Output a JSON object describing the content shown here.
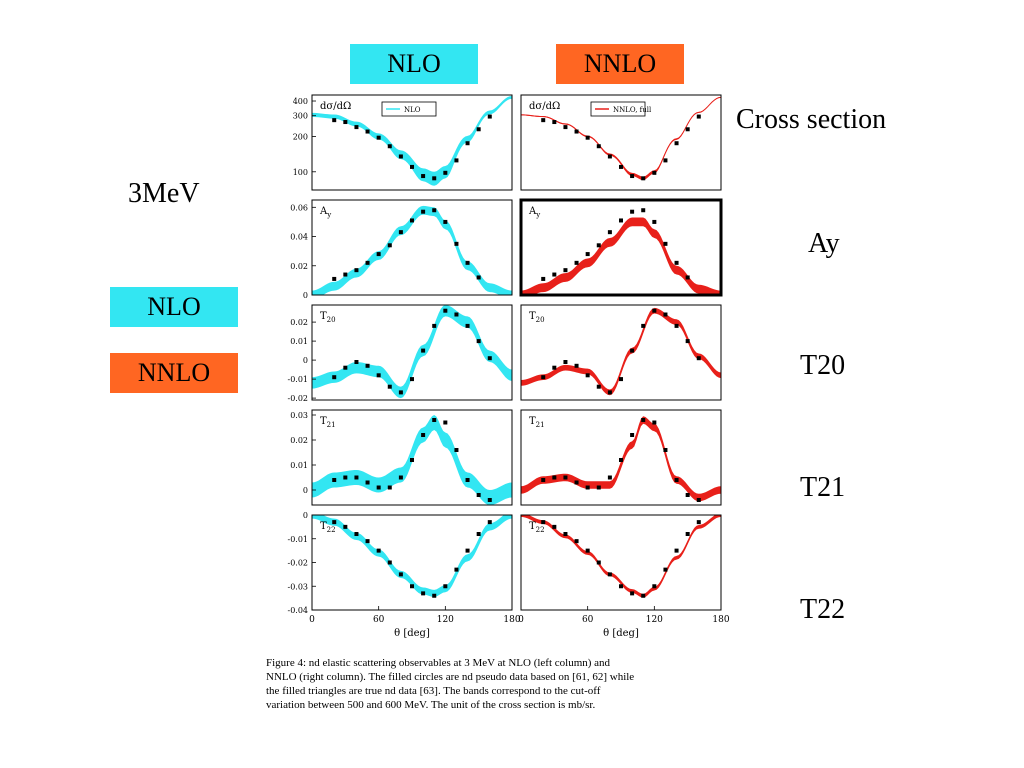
{
  "header": {
    "nlo_label": "NLO",
    "nnlo_label": "NNLO"
  },
  "energy_label": "3MeV",
  "legend_boxes": {
    "nlo_label": "NLO",
    "nnlo_label": "NNLO"
  },
  "row_labels": [
    "Cross section",
    "Ay",
    "T20",
    "T21",
    "T22"
  ],
  "colors": {
    "nlo": "#33e6f2",
    "nnlo": "#ff6622",
    "nnlo_band": "#e8201a",
    "data": "#000000"
  },
  "caption": [
    "Figure 4:   nd elastic scattering observables at 3 MeV at NLO (left column) and",
    "NNLO (right column). The filled circles are nd pseudo data based on [61, 62] while",
    "the filled triangles are true nd data [63].  The bands correspond to the cut-off",
    "variation between 500 and 600 MeV. The unit of the cross section is mb/sr."
  ],
  "chart_data": [
    {
      "type": "line",
      "panel": "dσ/dΩ NLO",
      "title": "dσ/dΩ",
      "legend": "NLO",
      "scale": "log",
      "xlabel": "",
      "ylabel": "",
      "xlim": [
        0,
        180
      ],
      "ylim": [
        70,
        450
      ],
      "yticks": [
        100,
        200,
        300,
        400
      ],
      "xticks": [],
      "x": [
        0,
        20,
        40,
        60,
        80,
        100,
        110,
        120,
        140,
        160,
        180
      ],
      "series": [
        {
          "name": "NLO",
          "values": [
            305,
            295,
            255,
            200,
            140,
            95,
            88,
            100,
            190,
            320,
            430
          ],
          "band": 12
        }
      ],
      "points": {
        "x": [
          20,
          30,
          40,
          50,
          60,
          70,
          80,
          90,
          100,
          110,
          120,
          130,
          140,
          150,
          160
        ],
        "values": [
          275,
          265,
          240,
          220,
          195,
          165,
          135,
          110,
          92,
          88,
          98,
          125,
          175,
          230,
          295
        ]
      }
    },
    {
      "type": "line",
      "panel": "dσ/dΩ NNLO",
      "title": "dσ/dΩ",
      "legend": "NNLO, full",
      "scale": "log",
      "xlabel": "",
      "ylabel": "",
      "xlim": [
        0,
        180
      ],
      "ylim": [
        70,
        450
      ],
      "yticks": [],
      "xticks": [],
      "x": [
        0,
        20,
        40,
        60,
        80,
        100,
        110,
        120,
        140,
        160,
        180
      ],
      "series": [
        {
          "name": "NNLO, full",
          "values": [
            305,
            295,
            255,
            200,
            140,
            95,
            88,
            100,
            190,
            320,
            430
          ],
          "band": 3
        }
      ],
      "points": {
        "x": [
          20,
          30,
          40,
          50,
          60,
          70,
          80,
          90,
          100,
          110,
          120,
          130,
          140,
          150,
          160
        ],
        "values": [
          275,
          265,
          240,
          220,
          195,
          165,
          135,
          110,
          92,
          88,
          98,
          125,
          175,
          230,
          295
        ]
      }
    },
    {
      "type": "line",
      "panel": "Ay NLO",
      "title": "Ay",
      "scale": "linear",
      "xlabel": "",
      "ylabel": "",
      "xlim": [
        0,
        180
      ],
      "ylim": [
        0,
        0.065
      ],
      "yticks": [
        0,
        0.02,
        0.04,
        0.06
      ],
      "xticks": [],
      "x": [
        0,
        20,
        40,
        60,
        80,
        100,
        110,
        120,
        140,
        160,
        180
      ],
      "series": [
        {
          "name": "NLO",
          "values": [
            0,
            0.006,
            0.015,
            0.027,
            0.044,
            0.058,
            0.057,
            0.048,
            0.02,
            0.005,
            0
          ],
          "band": 0.003
        }
      ],
      "points": {
        "x": [
          20,
          30,
          40,
          50,
          60,
          70,
          80,
          90,
          100,
          110,
          120,
          130,
          140,
          150
        ],
        "values": [
          0.011,
          0.014,
          0.017,
          0.022,
          0.028,
          0.034,
          0.043,
          0.051,
          0.057,
          0.058,
          0.05,
          0.035,
          0.022,
          0.012
        ]
      }
    },
    {
      "type": "line",
      "panel": "Ay NNLO",
      "title": "Ay",
      "scale": "linear",
      "highlight": true,
      "xlabel": "",
      "ylabel": "",
      "xlim": [
        0,
        180
      ],
      "ylim": [
        0,
        0.065
      ],
      "yticks": [],
      "xticks": [],
      "x": [
        0,
        20,
        40,
        60,
        80,
        100,
        110,
        120,
        140,
        160,
        180
      ],
      "series": [
        {
          "name": "NNLO",
          "values": [
            0,
            0.005,
            0.012,
            0.022,
            0.036,
            0.05,
            0.05,
            0.042,
            0.017,
            0.004,
            0
          ],
          "band": 0.003
        }
      ],
      "points": {
        "x": [
          20,
          30,
          40,
          50,
          60,
          70,
          80,
          90,
          100,
          110,
          120,
          130,
          140,
          150
        ],
        "values": [
          0.011,
          0.014,
          0.017,
          0.022,
          0.028,
          0.034,
          0.043,
          0.051,
          0.057,
          0.058,
          0.05,
          0.035,
          0.022,
          0.012
        ]
      }
    },
    {
      "type": "line",
      "panel": "T20 NLO",
      "title": "T20",
      "scale": "linear",
      "xlabel": "",
      "ylabel": "",
      "xlim": [
        0,
        180
      ],
      "ylim": [
        -0.021,
        0.029
      ],
      "yticks": [
        -0.02,
        -0.01,
        0,
        0.01,
        0.02
      ],
      "xticks": [],
      "x": [
        0,
        20,
        40,
        60,
        80,
        100,
        120,
        140,
        160,
        180
      ],
      "series": [
        {
          "name": "NLO",
          "values": [
            -0.012,
            -0.009,
            -0.004,
            -0.006,
            -0.017,
            0.005,
            0.026,
            0.02,
            0.002,
            -0.008
          ],
          "band": 0.003
        }
      ],
      "points": {
        "x": [
          20,
          30,
          40,
          50,
          60,
          70,
          80,
          90,
          100,
          110,
          120,
          130,
          140,
          150,
          160
        ],
        "values": [
          -0.009,
          -0.004,
          -0.001,
          -0.003,
          -0.008,
          -0.014,
          -0.017,
          -0.01,
          0.005,
          0.018,
          0.026,
          0.024,
          0.018,
          0.01,
          0.001
        ]
      }
    },
    {
      "type": "line",
      "panel": "T20 NNLO",
      "title": "T20",
      "scale": "linear",
      "xlabel": "",
      "ylabel": "",
      "xlim": [
        0,
        180
      ],
      "ylim": [
        -0.021,
        0.029
      ],
      "yticks": [],
      "xticks": [],
      "x": [
        0,
        20,
        40,
        60,
        80,
        100,
        120,
        140,
        160,
        180
      ],
      "series": [
        {
          "name": "NNLO",
          "values": [
            -0.012,
            -0.009,
            -0.004,
            -0.006,
            -0.017,
            0.005,
            0.026,
            0.02,
            0.002,
            -0.008
          ],
          "band": 0.0015
        }
      ],
      "points": {
        "x": [
          20,
          30,
          40,
          50,
          60,
          70,
          80,
          90,
          100,
          110,
          120,
          130,
          140,
          150,
          160
        ],
        "values": [
          -0.009,
          -0.004,
          -0.001,
          -0.003,
          -0.008,
          -0.014,
          -0.017,
          -0.01,
          0.005,
          0.018,
          0.026,
          0.024,
          0.018,
          0.01,
          0.001
        ]
      }
    },
    {
      "type": "line",
      "panel": "T21 NLO",
      "title": "T21",
      "scale": "linear",
      "xlabel": "",
      "ylabel": "",
      "xlim": [
        0,
        180
      ],
      "ylim": [
        -0.006,
        0.032
      ],
      "yticks": [
        0,
        0.01,
        0.02,
        0.03
      ],
      "xticks": [],
      "x": [
        0,
        20,
        40,
        60,
        80,
        100,
        110,
        120,
        140,
        160,
        180
      ],
      "series": [
        {
          "name": "NLO",
          "values": [
            0,
            0.004,
            0.005,
            0.002,
            0.006,
            0.022,
            0.027,
            0.02,
            0.004,
            -0.003,
            0
          ],
          "band": 0.003
        }
      ],
      "points": {
        "x": [
          20,
          30,
          40,
          50,
          60,
          70,
          80,
          90,
          100,
          110,
          120,
          130,
          140,
          150,
          160
        ],
        "values": [
          0.004,
          0.005,
          0.005,
          0.003,
          0.001,
          0.001,
          0.005,
          0.012,
          0.022,
          0.028,
          0.027,
          0.016,
          0.004,
          -0.002,
          -0.004
        ]
      }
    },
    {
      "type": "line",
      "panel": "T21 NNLO",
      "title": "T21",
      "scale": "linear",
      "xlabel": "",
      "ylabel": "",
      "xlim": [
        0,
        180
      ],
      "ylim": [
        -0.006,
        0.032
      ],
      "yticks": [],
      "xticks": [],
      "x": [
        0,
        20,
        40,
        60,
        80,
        100,
        110,
        120,
        140,
        160,
        180
      ],
      "series": [
        {
          "name": "NNLO",
          "values": [
            0,
            0.004,
            0.005,
            0.002,
            0.002,
            0.018,
            0.028,
            0.025,
            0.004,
            -0.003,
            0
          ],
          "band": 0.0015
        }
      ],
      "points": {
        "x": [
          20,
          30,
          40,
          50,
          60,
          70,
          80,
          90,
          100,
          110,
          120,
          130,
          140,
          150,
          160
        ],
        "values": [
          0.004,
          0.005,
          0.005,
          0.003,
          0.001,
          0.001,
          0.005,
          0.012,
          0.022,
          0.028,
          0.027,
          0.016,
          0.004,
          -0.002,
          -0.004
        ]
      }
    },
    {
      "type": "line",
      "panel": "T22 NLO",
      "title": "T22",
      "scale": "linear",
      "xlabel": "θ [deg]",
      "ylabel": "",
      "xlim": [
        0,
        180
      ],
      "ylim": [
        -0.04,
        0
      ],
      "yticks": [
        -0.04,
        -0.03,
        -0.02,
        -0.01,
        0
      ],
      "xticks": [
        0,
        60,
        120,
        180
      ],
      "x": [
        0,
        20,
        40,
        60,
        80,
        100,
        110,
        120,
        140,
        160,
        180
      ],
      "series": [
        {
          "name": "NLO",
          "values": [
            0,
            -0.003,
            -0.009,
            -0.016,
            -0.025,
            -0.032,
            -0.033,
            -0.031,
            -0.018,
            -0.005,
            0
          ],
          "band": 0.0015
        }
      ],
      "points": {
        "x": [
          20,
          30,
          40,
          50,
          60,
          70,
          80,
          90,
          100,
          110,
          120,
          130,
          140,
          150,
          160
        ],
        "values": [
          -0.003,
          -0.005,
          -0.008,
          -0.011,
          -0.015,
          -0.02,
          -0.025,
          -0.03,
          -0.033,
          -0.034,
          -0.03,
          -0.023,
          -0.015,
          -0.008,
          -0.003
        ]
      }
    },
    {
      "type": "line",
      "panel": "T22 NNLO",
      "title": "T22",
      "scale": "linear",
      "xlabel": "θ [deg]",
      "ylabel": "",
      "xlim": [
        0,
        180
      ],
      "ylim": [
        -0.04,
        0
      ],
      "yticks": [],
      "xticks": [
        0,
        60,
        120,
        180
      ],
      "x": [
        0,
        20,
        40,
        60,
        80,
        100,
        110,
        120,
        140,
        160,
        180
      ],
      "series": [
        {
          "name": "NNLO",
          "values": [
            0,
            -0.003,
            -0.009,
            -0.016,
            -0.025,
            -0.032,
            -0.034,
            -0.031,
            -0.018,
            -0.005,
            0
          ],
          "band": 0.0008
        }
      ],
      "points": {
        "x": [
          20,
          30,
          40,
          50,
          60,
          70,
          80,
          90,
          100,
          110,
          120,
          130,
          140,
          150,
          160
        ],
        "values": [
          -0.003,
          -0.005,
          -0.008,
          -0.011,
          -0.015,
          -0.02,
          -0.025,
          -0.03,
          -0.033,
          -0.034,
          -0.03,
          -0.023,
          -0.015,
          -0.008,
          -0.003
        ]
      }
    }
  ]
}
